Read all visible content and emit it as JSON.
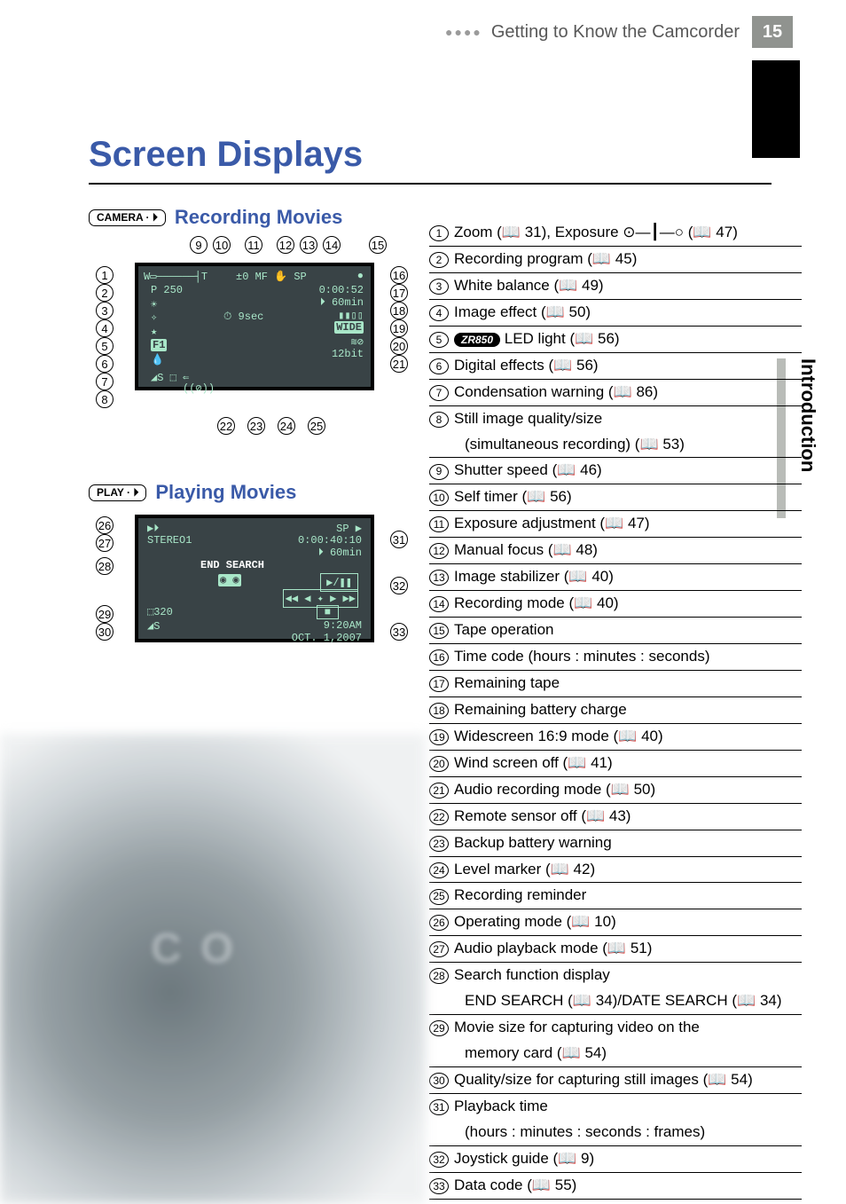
{
  "header": {
    "section": "Getting to Know the Camcorder",
    "page": "15"
  },
  "title": "Screen Displays",
  "sidetab": "Introduction",
  "sections": {
    "rec": {
      "badge": "CAMERA · ⏵",
      "label": "Recording Movies"
    },
    "play": {
      "badge": "PLAY · ⏵",
      "label": "Playing Movies"
    }
  },
  "lcd1": {
    "top": "±0  MF ✋ SP",
    "p": "P   250",
    "time": "0:00:52",
    "tape": "⏵ 60min",
    "self": "⏱ 9sec",
    "wide": "WIDE",
    "bit": "12bit",
    "f1": "F1"
  },
  "lcd2": {
    "stereo": "STEREO1",
    "sp": "SP ▶",
    "time": "0:00:40:10",
    "tape": "⏵ 60min",
    "end": "END SEARCH",
    "sz": "320",
    "s": "◢S",
    "clock": "9:20AM",
    "date": "OCT. 1,2007"
  },
  "topnums": [
    "9",
    "10",
    "11",
    "12",
    "13",
    "14",
    "15"
  ],
  "leftnums1": [
    "1",
    "2",
    "3",
    "4",
    "5",
    "6",
    "7",
    "8"
  ],
  "rightnums1": [
    "16",
    "17",
    "18",
    "19",
    "20",
    "21"
  ],
  "bottomnums1": [
    "22",
    "23",
    "24",
    "25"
  ],
  "leftnums2": [
    "26",
    "27",
    "28",
    "29",
    "30"
  ],
  "rightnums2": [
    "31",
    "32",
    "33"
  ],
  "list": [
    {
      "n": "1",
      "t": "Zoom (📖 31), Exposure  ⊙—┃—○  (📖 47)"
    },
    {
      "n": "2",
      "t": "Recording program (📖 45)"
    },
    {
      "n": "3",
      "t": "White balance (📖 49)"
    },
    {
      "n": "4",
      "t": "Image effect (📖 50)"
    },
    {
      "n": "5",
      "pill": "ZR850",
      "t": " LED light (📖 56)"
    },
    {
      "n": "6",
      "t": "Digital effects (📖 56)"
    },
    {
      "n": "7",
      "t": "Condensation warning (📖 86)"
    },
    {
      "n": "8",
      "t": "Still image quality/size",
      "sub": "(simultaneous recording) (📖 53)"
    },
    {
      "n": "9",
      "t": "Shutter speed (📖 46)"
    },
    {
      "n": "10",
      "t": "Self timer (📖 56)"
    },
    {
      "n": "11",
      "t": "Exposure adjustment (📖 47)"
    },
    {
      "n": "12",
      "t": "Manual focus (📖 48)"
    },
    {
      "n": "13",
      "t": "Image stabilizer (📖 40)"
    },
    {
      "n": "14",
      "t": "Recording mode (📖 40)"
    },
    {
      "n": "15",
      "t": "Tape operation"
    },
    {
      "n": "16",
      "t": "Time code (hours : minutes : seconds)"
    },
    {
      "n": "17",
      "t": "Remaining tape"
    },
    {
      "n": "18",
      "t": "Remaining battery charge"
    },
    {
      "n": "19",
      "t": "Widescreen 16:9 mode (📖 40)"
    },
    {
      "n": "20",
      "t": "Wind screen off (📖 41)"
    },
    {
      "n": "21",
      "t": "Audio recording mode (📖 50)"
    },
    {
      "n": "22",
      "t": "Remote sensor off (📖 43)"
    },
    {
      "n": "23",
      "t": "Backup battery warning"
    },
    {
      "n": "24",
      "t": "Level marker (📖 42)"
    },
    {
      "n": "25",
      "t": "Recording reminder"
    },
    {
      "n": "26",
      "t": "Operating mode (📖 10)"
    },
    {
      "n": "27",
      "t": "Audio playback mode (📖 51)"
    },
    {
      "n": "28",
      "t": "Search function display",
      "sub": "END SEARCH (📖 34)/DATE SEARCH (📖 34)"
    },
    {
      "n": "29",
      "t": "Movie size for capturing video on the",
      "sub": "memory card (📖 54)"
    },
    {
      "n": "30",
      "t": "Quality/size for capturing still images (📖 54)"
    },
    {
      "n": "31",
      "t": "Playback time",
      "sub": "(hours : minutes : seconds : frames)"
    },
    {
      "n": "32",
      "t": "Joystick guide (📖 9)"
    },
    {
      "n": "33",
      "t": "Data code (📖 55)"
    }
  ]
}
